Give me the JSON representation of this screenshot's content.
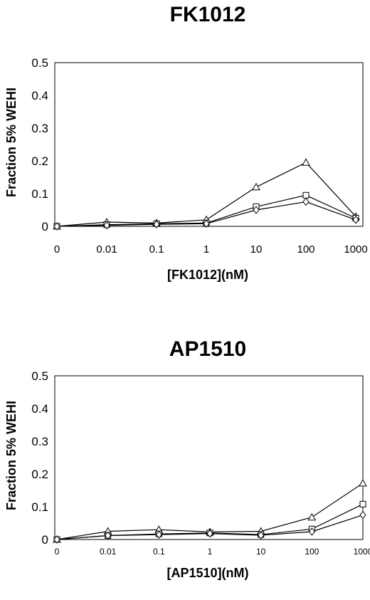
{
  "chart_data": [
    {
      "type": "line",
      "title": "FK1012",
      "xlabel": "[FK1012](nM)",
      "ylabel": "Fraction 5% WEHI",
      "categories": [
        "0",
        "0.01",
        "0.1",
        "1",
        "10",
        "100",
        "1000"
      ],
      "ylim": [
        0,
        0.5
      ],
      "yticks": [
        "0",
        "0.1",
        "0.2",
        "0.3",
        "0.4",
        "0.5"
      ],
      "grid": false,
      "series": [
        {
          "marker": "triangle",
          "values": [
            0,
            0.013,
            0.01,
            0.02,
            0.12,
            0.195,
            0.03
          ]
        },
        {
          "marker": "square",
          "values": [
            0,
            0.005,
            0.008,
            0.01,
            0.06,
            0.095,
            0.025
          ]
        },
        {
          "marker": "diamond",
          "values": [
            0,
            0.003,
            0.006,
            0.008,
            0.05,
            0.075,
            0.02
          ]
        }
      ]
    },
    {
      "type": "line",
      "title": "AP1510",
      "xlabel": "[AP1510](nM)",
      "ylabel": "Fraction 5% WEHI",
      "categories": [
        "0",
        "0.01",
        "0.1",
        "1",
        "10",
        "100",
        "1000"
      ],
      "ylim": [
        0,
        0.5
      ],
      "yticks": [
        "0",
        "0.1",
        "0.2",
        "0.3",
        "0.4",
        "0.5"
      ],
      "grid": false,
      "series": [
        {
          "marker": "triangle",
          "values": [
            0,
            0.025,
            0.03,
            0.023,
            0.025,
            0.068,
            0.172
          ]
        },
        {
          "marker": "square",
          "values": [
            0,
            0.012,
            0.017,
            0.02,
            0.015,
            0.032,
            0.108
          ]
        },
        {
          "marker": "diamond",
          "values": [
            0,
            0.012,
            0.015,
            0.018,
            0.013,
            0.024,
            0.075
          ]
        }
      ]
    }
  ]
}
